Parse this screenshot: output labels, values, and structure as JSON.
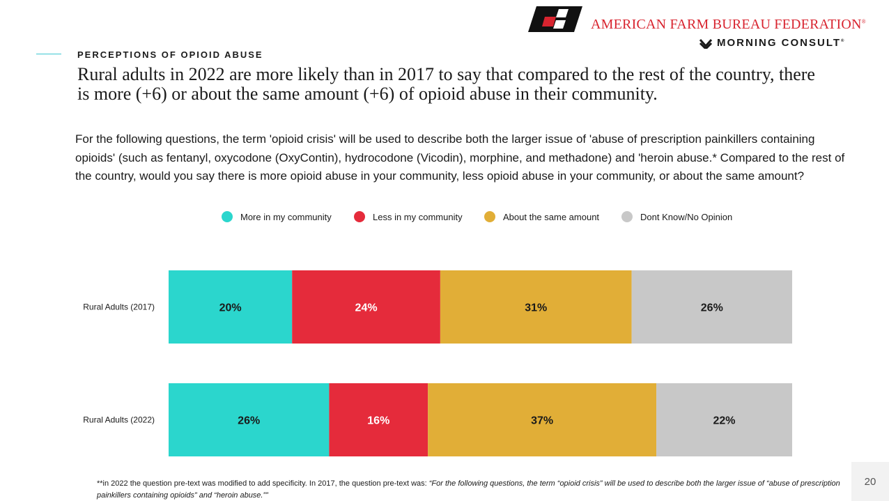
{
  "header": {
    "org_name": "AMERICAN FARM BUREAU FEDERATION",
    "org_mark": "®",
    "partner_name": "MORNING CONSULT",
    "partner_mark": "®"
  },
  "section_label": "PERCEPTIONS OF OPIOID ABUSE",
  "headline": "Rural adults in 2022 are more likely than in 2017 to say that compared to the rest of the country, there is more (+6) or about the same amount (+6) of opioid abuse in their community.",
  "question_text": "For the following questions, the term 'opioid crisis' will be used to describe both the larger issue of 'abuse of prescription painkillers containing opioids' (such as fentanyl, oxycodone (OxyContin), hydrocodone (Vicodin), morphine, and methadone) and 'heroin abuse.* Compared to the rest of the country, would you say there is more opioid abuse in your community, less opioid abuse in your community, or about the same amount?",
  "chart_data": {
    "type": "bar",
    "orientation": "horizontal",
    "stacked": true,
    "categories": [
      "Rural Adults (2017)",
      "Rural Adults (2022)"
    ],
    "series": [
      {
        "name": "More in my community",
        "values": [
          20,
          26
        ],
        "labels": [
          "20%",
          "26%"
        ],
        "color": "#2bd6cd",
        "label_color": "#1a1a1a"
      },
      {
        "name": "Less in my community",
        "values": [
          24,
          16
        ],
        "labels": [
          "24%",
          "16%"
        ],
        "color": "#e52b3b",
        "label_color": "#ffffff"
      },
      {
        "name": "About the same amount",
        "values": [
          31,
          37
        ],
        "labels": [
          "31%",
          "37%"
        ],
        "color": "#e1ae37",
        "label_color": "#1a1a1a"
      },
      {
        "name": "Dont Know/No Opinion",
        "values": [
          26,
          22
        ],
        "labels": [
          "26%",
          "22%"
        ],
        "color": "#c8c8c8",
        "label_color": "#1a1a1a"
      }
    ],
    "legend_position": "top",
    "grid": false
  },
  "footnote": {
    "text": "**in 2022 the question pre-text was modified to add specificity. In 2017, the question pre-text was: ",
    "quote": "“For the following questions, the term “opioid crisis” will be used to describe both the larger issue of “abuse of prescription painkillers containing opioids” and “heroin abuse.””"
  },
  "page_number": "20"
}
